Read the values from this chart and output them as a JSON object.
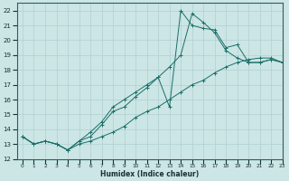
{
  "xlabel": "Humidex (Indice chaleur)",
  "xlim": [
    -0.5,
    23
  ],
  "ylim": [
    12,
    22.5
  ],
  "bg_color": "#cce5e5",
  "grid_color": "#b0d0d0",
  "line_color": "#1a7068",
  "series": [
    {
      "x": [
        0,
        1,
        2,
        3,
        4,
        5,
        6,
        7,
        8,
        9,
        10,
        11,
        12,
        13,
        14,
        15,
        16,
        17,
        18,
        19,
        20,
        21,
        22,
        23
      ],
      "y": [
        13.5,
        13.0,
        13.2,
        13.0,
        12.6,
        13.2,
        13.5,
        14.3,
        15.2,
        15.5,
        16.2,
        16.8,
        17.5,
        18.2,
        19.0,
        21.8,
        21.2,
        20.5,
        19.3,
        18.8,
        18.5,
        18.5,
        18.7,
        18.5
      ]
    },
    {
      "x": [
        0,
        1,
        2,
        3,
        4,
        5,
        6,
        7,
        8,
        9,
        10,
        11,
        12,
        13,
        14,
        15,
        16,
        17,
        18,
        19,
        20,
        21,
        22,
        23
      ],
      "y": [
        13.5,
        13.0,
        13.2,
        13.0,
        12.6,
        13.0,
        13.2,
        13.5,
        13.8,
        14.2,
        14.8,
        15.2,
        15.5,
        16.0,
        16.5,
        17.0,
        17.3,
        17.8,
        18.2,
        18.5,
        18.7,
        18.8,
        18.8,
        18.5
      ]
    },
    {
      "x": [
        0,
        1,
        2,
        3,
        4,
        5,
        6,
        7,
        8,
        9,
        10,
        11,
        12,
        13,
        14,
        15,
        16,
        17,
        18,
        19,
        20,
        21,
        22,
        23
      ],
      "y": [
        13.5,
        13.0,
        13.2,
        13.0,
        12.6,
        13.2,
        13.8,
        14.5,
        15.5,
        16.0,
        16.5,
        17.0,
        17.5,
        15.5,
        22.0,
        21.0,
        20.8,
        20.7,
        19.5,
        19.7,
        18.5,
        18.5,
        18.7,
        18.5
      ]
    }
  ]
}
